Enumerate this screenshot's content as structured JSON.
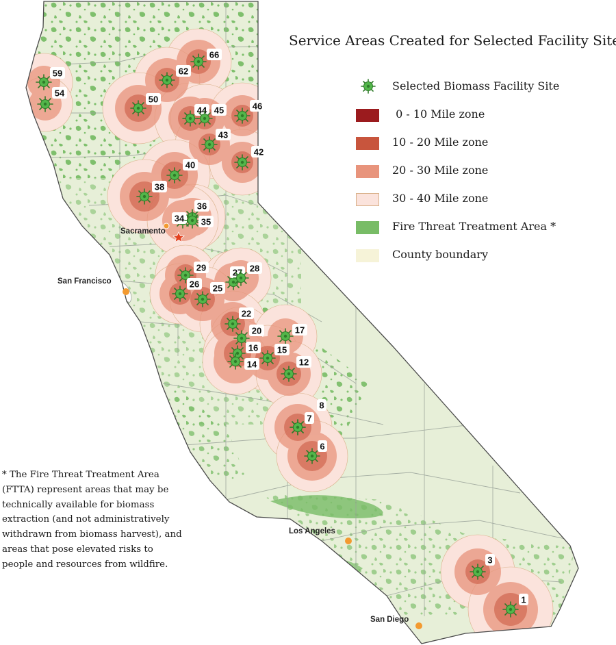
{
  "title": "Service Areas Created for Selected Facility Sites",
  "legend": [
    {
      "label": "Selected Biomass Facility Site",
      "icon": "biomass-site-icon",
      "color": "#52b64a"
    },
    {
      "label": " 0 - 10 Mile zone",
      "color": "#9b1b1e"
    },
    {
      "label": "10 - 20 Mile zone",
      "color": "#c8553d"
    },
    {
      "label": "20 - 30 Mile zone",
      "color": "#e8947c"
    },
    {
      "label": "30 - 40 Mile zone",
      "color": "#fbe3dc"
    },
    {
      "label": "Fire Threat Treatment Area *",
      "color": "#78bc66"
    },
    {
      "label": "County boundary",
      "color": "#f6f3d8"
    }
  ],
  "footnote": "* The Fire Threat Treatment Area (FTTA) represent areas that may be technically available for biomass extraction (and not administratively withdrawn from biomass harvest), and areas that pose elevated risks to people and resources from wildfire.",
  "cities": [
    "Sacramento",
    "San Francisco",
    "Los Angeles",
    "San Diego"
  ],
  "sites": [
    "66",
    "62",
    "59",
    "54",
    "50",
    "44",
    "45",
    "46",
    "43",
    "42",
    "40",
    "38",
    "36",
    "34",
    "35",
    "29",
    "27",
    "28",
    "26",
    "25",
    "22",
    "20",
    "17",
    "16",
    "15",
    "14",
    "12",
    "8",
    "7",
    "6",
    "3",
    "1"
  ],
  "colors": {
    "land": "#e7efd8",
    "ftta": "#78bc66",
    "county_line": "#9aa39a",
    "zone_0_10": "#9b1b1e",
    "zone_10_20": "#c8553d",
    "zone_20_30": "#e8947c",
    "zone_30_40": "#fbe3dc",
    "site": "#52b64a",
    "city_dot": "#f39a30",
    "capital_star": "#e3411f"
  }
}
